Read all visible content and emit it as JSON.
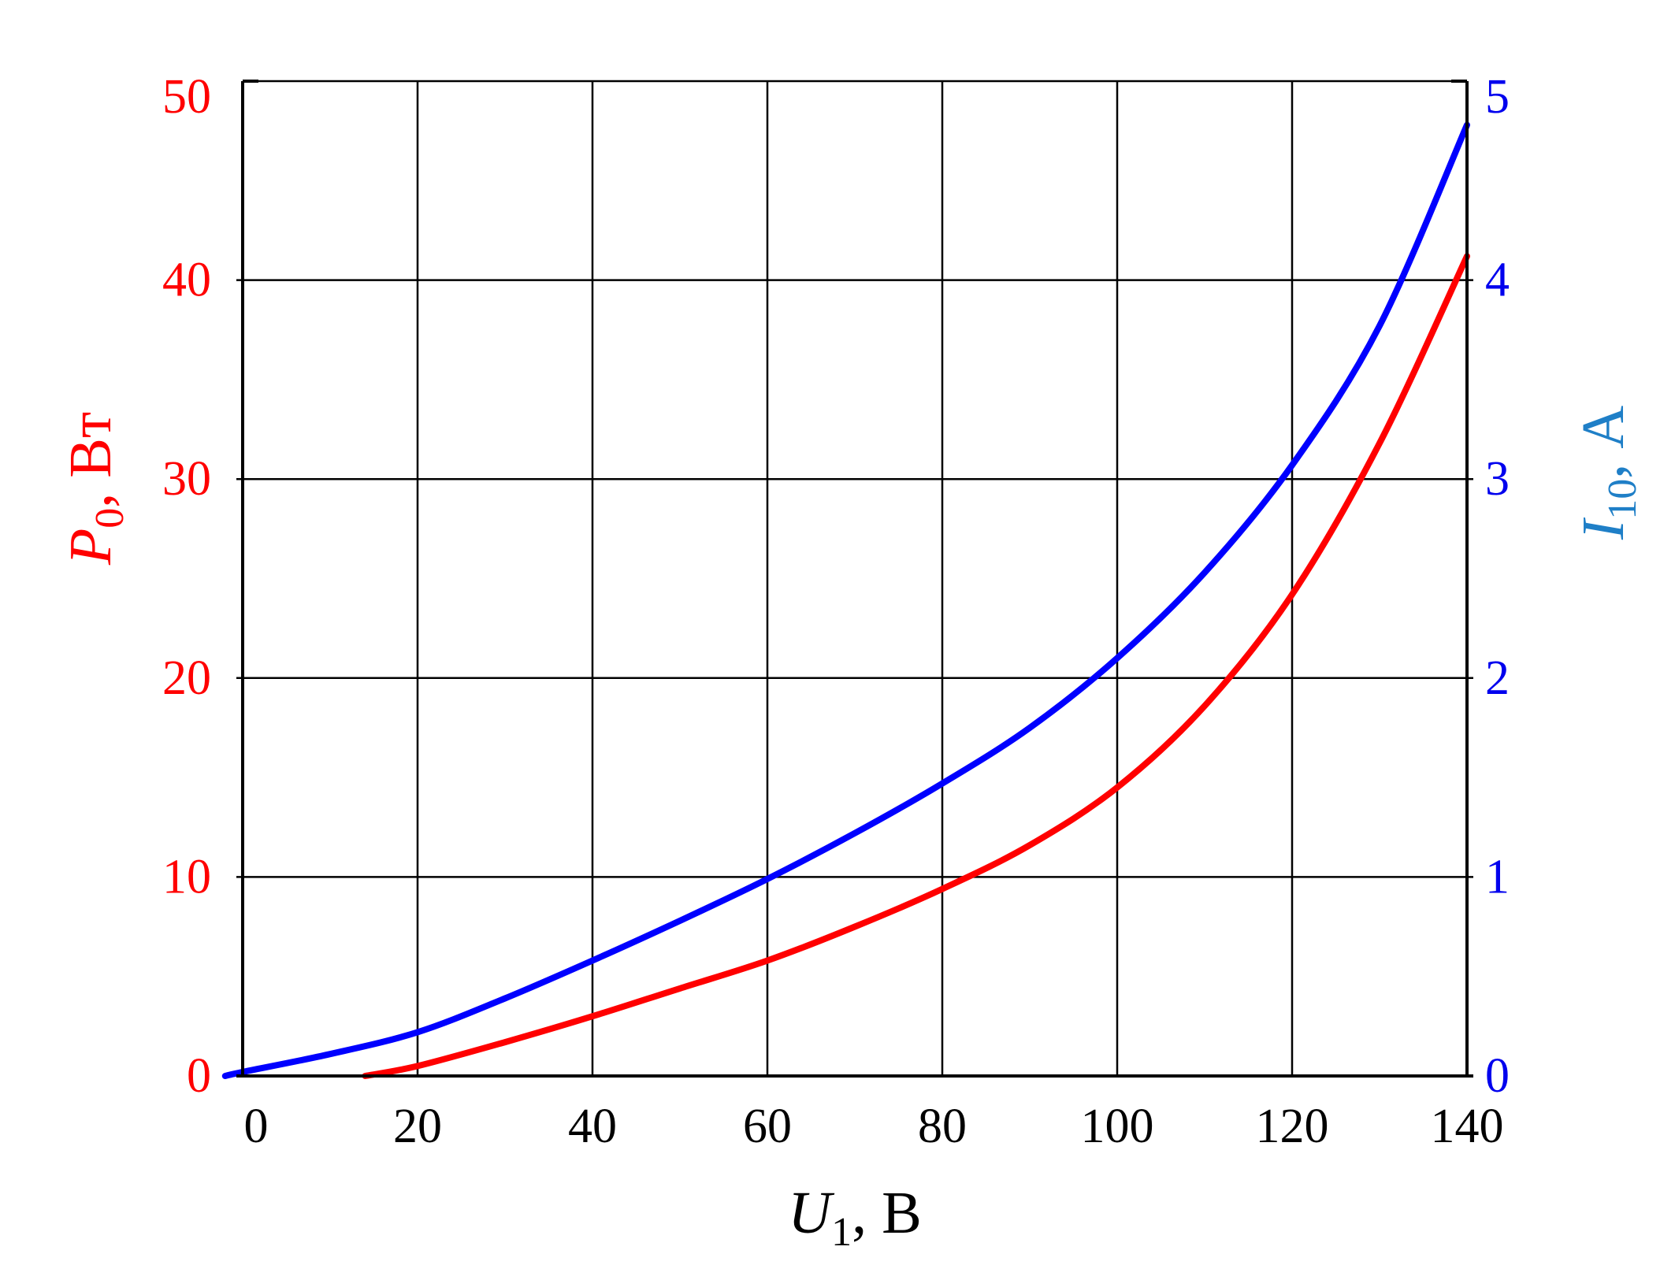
{
  "chart_data": {
    "type": "line",
    "x": {
      "label_main": "U",
      "label_sub": "1",
      "label_unit": ", В",
      "ticks": [
        0,
        20,
        40,
        60,
        80,
        100,
        120,
        140
      ],
      "tick_labels": [
        "0",
        "20",
        "40",
        "60",
        "80",
        "100",
        "120",
        "140"
      ],
      "range": [
        -2,
        142
      ]
    },
    "y_left": {
      "label_main": "P",
      "label_sub": "0",
      "label_unit": ", Вт",
      "ticks": [
        0,
        10,
        20,
        30,
        40,
        50
      ],
      "tick_labels": [
        "0",
        "10",
        "20",
        "30",
        "40",
        "50"
      ],
      "range": [
        0,
        50
      ],
      "color": "#ff0000"
    },
    "y_right": {
      "label_main": "I",
      "label_sub": "10",
      "label_unit": ", А",
      "ticks": [
        0,
        1,
        2,
        3,
        4,
        5
      ],
      "tick_labels": [
        "0",
        "1",
        "2",
        "3",
        "4",
        "5"
      ],
      "range": [
        0,
        5
      ],
      "tick_color": "#0000ee",
      "title_color": "#1f7fc7"
    },
    "grid": true,
    "series": [
      {
        "axis": "left",
        "color": "#ff0000",
        "points": [
          [
            14,
            0
          ],
          [
            20,
            0.5
          ],
          [
            30,
            1.7
          ],
          [
            40,
            3.0
          ],
          [
            50,
            4.4
          ],
          [
            60,
            5.8
          ],
          [
            70,
            7.5
          ],
          [
            80,
            9.4
          ],
          [
            90,
            11.6
          ],
          [
            100,
            14.5
          ],
          [
            110,
            18.6
          ],
          [
            120,
            24.2
          ],
          [
            130,
            31.8
          ],
          [
            140,
            41.2
          ]
        ]
      },
      {
        "axis": "right",
        "color": "#0000ff",
        "points": [
          [
            -2,
            0
          ],
          [
            0,
            0.02
          ],
          [
            10,
            0.11
          ],
          [
            20,
            0.22
          ],
          [
            30,
            0.39
          ],
          [
            40,
            0.58
          ],
          [
            50,
            0.78
          ],
          [
            60,
            0.99
          ],
          [
            70,
            1.22
          ],
          [
            80,
            1.47
          ],
          [
            90,
            1.75
          ],
          [
            100,
            2.1
          ],
          [
            110,
            2.53
          ],
          [
            120,
            3.07
          ],
          [
            130,
            3.77
          ],
          [
            140,
            4.78
          ]
        ]
      }
    ]
  }
}
